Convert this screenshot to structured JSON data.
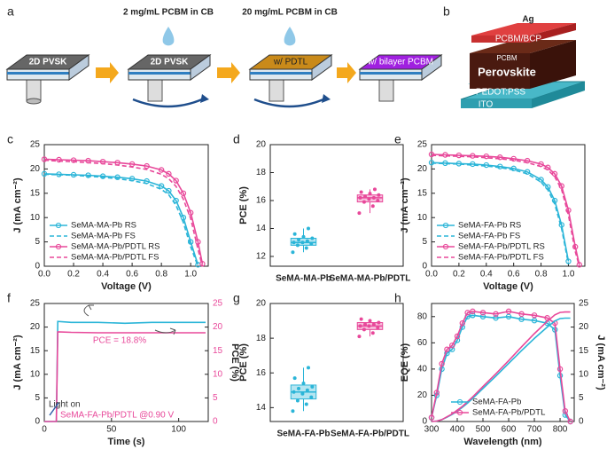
{
  "schematic": {
    "a": {
      "panel": "a",
      "labels": [
        "2D PVSK",
        "2 mg/mL PCBM in CB",
        "2D PVSK",
        "20 mg/mL PCBM in CB",
        "w/ PDTL",
        "w/ bilayer PCBM"
      ]
    },
    "b": {
      "panel": "b",
      "labels": [
        "Ag",
        "PCBM/BCP",
        "PCBM",
        "Perovskite",
        "PEDOT:PSS",
        "ITO"
      ]
    }
  },
  "chart_data": [
    {
      "type": "line",
      "panel": "c",
      "xlabel": "Voltage (V)",
      "ylabel": "J (mA cm⁻²)",
      "x": [
        0,
        0.1,
        0.2,
        0.3,
        0.4,
        0.5,
        0.6,
        0.7,
        0.8,
        0.85,
        0.9,
        0.95,
        1.0,
        1.05,
        1.08
      ],
      "xlim": [
        0,
        1.12
      ],
      "ylim": [
        0,
        25
      ],
      "xticks": [
        {
          "value": 0,
          "label": "0.0"
        },
        {
          "value": 0.2,
          "label": "0.2"
        },
        {
          "value": 0.4,
          "label": "0.4"
        },
        {
          "value": 0.6,
          "label": "0.6"
        },
        {
          "value": 0.8,
          "label": "0.8"
        },
        {
          "value": 1,
          "label": "1.0"
        }
      ],
      "yticks": [
        0,
        5,
        10,
        15,
        20,
        25
      ],
      "legend": "lower left",
      "series": [
        {
          "name": "SeMA-MA-Pb  RS",
          "color": "#2bb5d8",
          "dash": false,
          "marker": true,
          "values": [
            19.0,
            18.9,
            18.8,
            18.7,
            18.5,
            18.3,
            18.0,
            17.5,
            16.5,
            15.5,
            13.5,
            10.0,
            5.0,
            0.3,
            null
          ]
        },
        {
          "name": "SeMA-MA-Pb  FS",
          "color": "#2bb5d8",
          "dash": true,
          "marker": false,
          "values": [
            18.9,
            18.8,
            18.7,
            18.5,
            18.3,
            18.0,
            17.6,
            17.0,
            15.8,
            14.7,
            12.5,
            9.0,
            4.0,
            0,
            null
          ]
        },
        {
          "name": "SeMA-MA-Pb/PDTL  RS",
          "color": "#e8489a",
          "dash": false,
          "marker": true,
          "values": [
            22.0,
            21.9,
            21.8,
            21.7,
            21.5,
            21.3,
            21.0,
            20.6,
            19.8,
            19.0,
            17.6,
            15.0,
            11.0,
            5.0,
            0.5
          ]
        },
        {
          "name": "SeMA-MA-Pb/PDTL  FS",
          "color": "#e8489a",
          "dash": true,
          "marker": false,
          "values": [
            21.8,
            21.6,
            21.5,
            21.3,
            21.1,
            20.8,
            20.4,
            19.9,
            18.9,
            18.0,
            16.4,
            13.8,
            9.8,
            3.5,
            0
          ]
        }
      ]
    },
    {
      "type": "box",
      "panel": "d",
      "ylabel": "PCE (%)",
      "ylim": [
        11.3,
        20
      ],
      "yticks": [
        12,
        14,
        16,
        18,
        20
      ],
      "categories": [
        "SeMA-MA-Pb",
        "SeMA-MA-Pb/PDTL"
      ],
      "boxes": [
        {
          "color": "#2bb5d8",
          "min": 12.3,
          "q1": 12.8,
          "median": 13.0,
          "q3": 13.3,
          "max": 14.0,
          "points": [
            12.3,
            12.6,
            12.8,
            12.9,
            13.0,
            13.0,
            13.1,
            13.2,
            13.3,
            13.4,
            13.6,
            14.0
          ]
        },
        {
          "color": "#e8489a",
          "min": 15.1,
          "q1": 15.9,
          "median": 16.2,
          "q3": 16.4,
          "max": 16.8,
          "points": [
            15.1,
            15.6,
            15.9,
            16.0,
            16.1,
            16.2,
            16.2,
            16.3,
            16.4,
            16.5,
            16.6,
            16.8
          ]
        }
      ]
    },
    {
      "type": "line",
      "panel": "e",
      "xlabel": "Voltage (V)",
      "ylabel": "J (mA cm⁻²)",
      "x": [
        0,
        0.1,
        0.2,
        0.3,
        0.4,
        0.5,
        0.6,
        0.7,
        0.8,
        0.85,
        0.9,
        0.95,
        1.0,
        1.05,
        1.08
      ],
      "xlim": [
        0,
        1.12
      ],
      "ylim": [
        0,
        25
      ],
      "xticks": [
        {
          "value": 0,
          "label": "0.0"
        },
        {
          "value": 0.2,
          "label": "0.2"
        },
        {
          "value": 0.4,
          "label": "0.4"
        },
        {
          "value": 0.6,
          "label": "0.6"
        },
        {
          "value": 0.8,
          "label": "0.8"
        },
        {
          "value": 1,
          "label": "1.0"
        }
      ],
      "yticks": [
        0,
        5,
        10,
        15,
        20,
        25
      ],
      "legend": "lower left",
      "series": [
        {
          "name": "SeMA-FA-Pb  RS",
          "color": "#2bb5d8",
          "dash": false,
          "marker": true,
          "values": [
            21.3,
            21.2,
            21.1,
            21.0,
            20.8,
            20.5,
            20.1,
            19.4,
            17.8,
            16.3,
            13.5,
            8.5,
            1.0,
            null,
            null
          ]
        },
        {
          "name": "SeMA-FA-Pb  FS",
          "color": "#2bb5d8",
          "dash": true,
          "marker": false,
          "values": [
            21.2,
            21.1,
            21.0,
            20.8,
            20.6,
            20.3,
            19.8,
            19.0,
            17.3,
            15.7,
            12.8,
            7.8,
            0.5,
            null,
            null
          ]
        },
        {
          "name": "SeMA-FA-Pb/PDTL  RS",
          "color": "#e8489a",
          "dash": false,
          "marker": true,
          "values": [
            23.0,
            22.9,
            22.8,
            22.7,
            22.6,
            22.4,
            22.1,
            21.7,
            21.0,
            20.3,
            19.0,
            16.5,
            11.5,
            4.0,
            0.3
          ]
        },
        {
          "name": "SeMA-FA-Pb/PDTL  FS",
          "color": "#e8489a",
          "dash": true,
          "marker": false,
          "values": [
            22.8,
            22.7,
            22.6,
            22.5,
            22.3,
            22.1,
            21.8,
            21.3,
            20.5,
            19.8,
            18.4,
            15.8,
            10.5,
            3.0,
            0
          ]
        }
      ]
    },
    {
      "type": "line",
      "panel": "f",
      "xlabel": "Time (s)",
      "ylabel": "J (mA cm⁻²)",
      "y2label": "PCE (%)",
      "x": [
        0,
        9,
        10,
        20,
        40,
        60,
        80,
        100,
        120
      ],
      "xlim": [
        0,
        122
      ],
      "ylim": [
        0,
        25
      ],
      "y2lim": [
        0,
        25
      ],
      "xticks": [
        0,
        50,
        100
      ],
      "yticks": [
        0,
        5,
        10,
        15,
        20,
        25
      ],
      "y2ticks": [
        0,
        5,
        10,
        15,
        20,
        25
      ],
      "annotations": [
        {
          "text": "PCE = 18.8%",
          "color": "#e8489a"
        },
        {
          "text": "Light on",
          "color": "#333333"
        },
        {
          "text": "SeMA-FA-Pb/PDTL @0.90 V",
          "color": "#e8489a"
        }
      ],
      "series": [
        {
          "color": "#2bb5d8",
          "dash": false,
          "marker": false,
          "values": [
            0,
            0,
            21.2,
            21.0,
            21.0,
            20.8,
            21.0,
            21.0,
            21.0
          ]
        },
        {
          "color": "#e8489a",
          "dash": false,
          "marker": false,
          "axis": "y2",
          "values": [
            0,
            0,
            19.0,
            18.9,
            18.8,
            18.8,
            18.8,
            18.8,
            18.8
          ]
        }
      ]
    },
    {
      "type": "box",
      "panel": "g",
      "ylabel": "PCE (%)",
      "ylim": [
        13.2,
        20
      ],
      "yticks": [
        14,
        16,
        18,
        20
      ],
      "categories": [
        "SeMA-FA-Pb",
        "SeMA-FA-Pb/PDTL"
      ],
      "boxes": [
        {
          "color": "#2bb5d8",
          "min": 13.8,
          "q1": 14.5,
          "median": 14.9,
          "q3": 15.3,
          "max": 16.3,
          "points": [
            13.8,
            14.2,
            14.4,
            14.6,
            14.8,
            14.9,
            15.0,
            15.1,
            15.2,
            15.4,
            15.7,
            16.3
          ]
        },
        {
          "color": "#e8489a",
          "min": 18.1,
          "q1": 18.5,
          "median": 18.7,
          "q3": 18.9,
          "max": 19.1,
          "points": [
            18.1,
            18.3,
            18.5,
            18.6,
            18.7,
            18.7,
            18.8,
            18.8,
            18.9,
            19.0,
            19.1
          ]
        }
      ]
    },
    {
      "type": "line",
      "panel": "h",
      "xlabel": "Wavelength (nm)",
      "ylabel": "EQE (%)",
      "y2label": "J (mA cm⁻²)",
      "x": [
        300,
        320,
        340,
        360,
        380,
        400,
        420,
        440,
        460,
        500,
        550,
        600,
        650,
        700,
        750,
        780,
        800,
        820,
        840
      ],
      "xlim": [
        300,
        855
      ],
      "ylim": [
        0,
        90
      ],
      "y2lim": [
        0,
        25
      ],
      "xticks": [
        300,
        400,
        500,
        600,
        700,
        800
      ],
      "yticks": [
        0,
        20,
        40,
        60,
        80
      ],
      "y2ticks": [
        0,
        5,
        10,
        15,
        20,
        25
      ],
      "legend": "lower center",
      "series": [
        {
          "name": "SeMA-FA-Pb",
          "color": "#2bb5d8",
          "dash": false,
          "marker": true,
          "values": [
            3,
            20,
            40,
            52,
            55,
            62,
            72,
            80,
            81,
            80,
            79,
            80,
            78,
            77,
            75,
            70,
            35,
            5,
            0
          ]
        },
        {
          "name": "SeMA-FA-Pb/PDTL",
          "color": "#e8489a",
          "dash": false,
          "marker": true,
          "values": [
            3,
            22,
            44,
            55,
            58,
            65,
            75,
            83,
            84,
            83,
            82,
            84,
            82,
            81,
            79,
            75,
            40,
            8,
            0
          ]
        },
        {
          "color": "#2bb5d8",
          "dash": false,
          "marker": false,
          "axis": "y2",
          "values": [
            0,
            0.1,
            0.4,
            0.9,
            1.5,
            2.2,
            3.0,
            3.9,
            4.9,
            7.0,
            9.6,
            12.3,
            15.0,
            17.6,
            20.0,
            21.3,
            21.8,
            21.9,
            21.9
          ]
        },
        {
          "color": "#e8489a",
          "dash": false,
          "marker": false,
          "axis": "y2",
          "values": [
            0,
            0.1,
            0.4,
            1.0,
            1.6,
            2.4,
            3.2,
            4.2,
            5.2,
            7.4,
            10.1,
            12.9,
            15.8,
            18.6,
            21.2,
            22.6,
            23.1,
            23.2,
            23.2
          ]
        }
      ]
    }
  ]
}
